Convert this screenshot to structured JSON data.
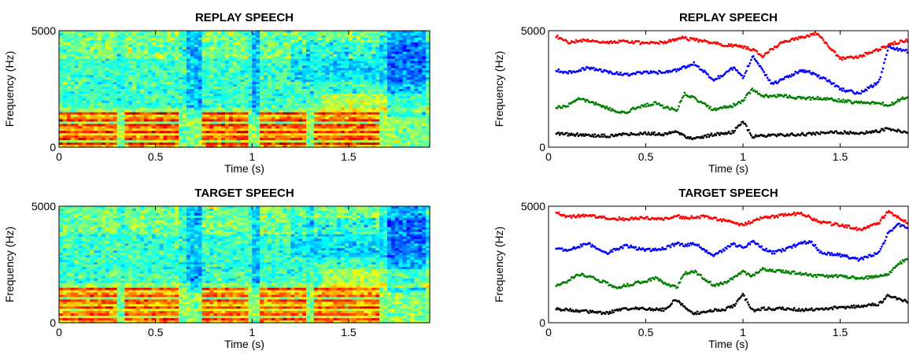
{
  "chart_data": [
    {
      "type": "heatmap",
      "id": "spec-replay",
      "title": "REPLAY SPEECH",
      "xlabel": "Time (s)",
      "ylabel": "Frequency (Hz)",
      "xlim": [
        0,
        1.92
      ],
      "ylim": [
        0,
        5000
      ],
      "xticks": [
        0,
        0.5,
        1,
        1.5
      ],
      "xtick_labels": [
        "0",
        "0.5",
        "1",
        "1.5"
      ],
      "yticks": [
        0,
        5000
      ],
      "ytick_labels": [
        "0",
        "5000"
      ],
      "colormap": "jet",
      "seed": 7,
      "strength": 1.0
    },
    {
      "type": "scatter",
      "id": "formant-replay",
      "title": "REPLAY SPEECH",
      "xlabel": "Time (s)",
      "ylabel": "Frequency (Hz)",
      "xlim": [
        0,
        1.85
      ],
      "ylim": [
        0,
        5000
      ],
      "xticks": [
        0,
        0.5,
        1,
        1.5
      ],
      "xtick_labels": [
        "0",
        "0.5",
        "1",
        "1.5"
      ],
      "yticks": [
        0,
        5000
      ],
      "ytick_labels": [
        "0",
        "5000"
      ],
      "series": [
        {
          "color": "#ff0000",
          "points": [
            [
              0.04,
              4750
            ],
            [
              0.1,
              4500
            ],
            [
              0.2,
              4600
            ],
            [
              0.3,
              4500
            ],
            [
              0.4,
              4550
            ],
            [
              0.5,
              4450
            ],
            [
              0.6,
              4500
            ],
            [
              0.68,
              4700
            ],
            [
              0.8,
              4550
            ],
            [
              0.9,
              4400
            ],
            [
              1.0,
              4300
            ],
            [
              1.05,
              4200
            ],
            [
              1.1,
              3900
            ],
            [
              1.2,
              4500
            ],
            [
              1.3,
              4700
            ],
            [
              1.38,
              4900
            ],
            [
              1.5,
              3800
            ],
            [
              1.6,
              3900
            ],
            [
              1.7,
              4200
            ],
            [
              1.75,
              4400
            ],
            [
              1.85,
              4600
            ]
          ]
        },
        {
          "color": "#0000ff",
          "points": [
            [
              0.04,
              3300
            ],
            [
              0.1,
              3200
            ],
            [
              0.2,
              3400
            ],
            [
              0.3,
              3250
            ],
            [
              0.4,
              3100
            ],
            [
              0.45,
              3200
            ],
            [
              0.55,
              3200
            ],
            [
              0.6,
              3250
            ],
            [
              0.66,
              3300
            ],
            [
              0.75,
              3600
            ],
            [
              0.85,
              2900
            ],
            [
              0.9,
              3100
            ],
            [
              0.95,
              3400
            ],
            [
              1.0,
              3000
            ],
            [
              1.05,
              3900
            ],
            [
              1.1,
              3300
            ],
            [
              1.15,
              2700
            ],
            [
              1.25,
              3100
            ],
            [
              1.3,
              3300
            ],
            [
              1.35,
              3200
            ],
            [
              1.45,
              2800
            ],
            [
              1.5,
              2500
            ],
            [
              1.6,
              2300
            ],
            [
              1.7,
              2800
            ],
            [
              1.75,
              4300
            ],
            [
              1.8,
              4200
            ],
            [
              1.85,
              4100
            ]
          ]
        },
        {
          "color": "#007f00",
          "points": [
            [
              0.04,
              1700
            ],
            [
              0.1,
              1800
            ],
            [
              0.15,
              2100
            ],
            [
              0.2,
              2000
            ],
            [
              0.3,
              1700
            ],
            [
              0.35,
              1500
            ],
            [
              0.4,
              1500
            ],
            [
              0.45,
              1700
            ],
            [
              0.5,
              1800
            ],
            [
              0.55,
              1900
            ],
            [
              0.6,
              1700
            ],
            [
              0.66,
              1600
            ],
            [
              0.7,
              2300
            ],
            [
              0.75,
              2100
            ],
            [
              0.85,
              1600
            ],
            [
              0.9,
              1700
            ],
            [
              0.95,
              1800
            ],
            [
              1.0,
              2000
            ],
            [
              1.05,
              2500
            ],
            [
              1.1,
              2200
            ],
            [
              1.2,
              2200
            ],
            [
              1.3,
              2100
            ],
            [
              1.4,
              2100
            ],
            [
              1.5,
              2000
            ],
            [
              1.6,
              1900
            ],
            [
              1.7,
              1900
            ],
            [
              1.75,
              1800
            ],
            [
              1.8,
              2000
            ],
            [
              1.85,
              2200
            ]
          ]
        },
        {
          "color": "#000000",
          "points": [
            [
              0.04,
              600
            ],
            [
              0.1,
              550
            ],
            [
              0.2,
              520
            ],
            [
              0.3,
              480
            ],
            [
              0.4,
              560
            ],
            [
              0.5,
              600
            ],
            [
              0.6,
              560
            ],
            [
              0.66,
              700
            ],
            [
              0.7,
              450
            ],
            [
              0.75,
              350
            ],
            [
              0.85,
              550
            ],
            [
              0.9,
              560
            ],
            [
              0.95,
              650
            ],
            [
              1.0,
              1100
            ],
            [
              1.05,
              450
            ],
            [
              1.1,
              500
            ],
            [
              1.2,
              520
            ],
            [
              1.3,
              550
            ],
            [
              1.4,
              600
            ],
            [
              1.5,
              650
            ],
            [
              1.6,
              600
            ],
            [
              1.7,
              700
            ],
            [
              1.75,
              800
            ],
            [
              1.8,
              700
            ],
            [
              1.85,
              650
            ]
          ]
        }
      ]
    },
    {
      "type": "heatmap",
      "id": "spec-target",
      "title": "TARGET SPEECH",
      "xlabel": "Time (s)",
      "ylabel": "Frequency (Hz)",
      "xlim": [
        0,
        1.92
      ],
      "ylim": [
        0,
        5000
      ],
      "xticks": [
        0,
        0.5,
        1,
        1.5
      ],
      "xtick_labels": [
        "0",
        "0.5",
        "1",
        "1.5"
      ],
      "yticks": [
        0,
        5000
      ],
      "ytick_labels": [
        "0",
        "5000"
      ],
      "colormap": "jet",
      "seed": 19,
      "strength": 0.9
    },
    {
      "type": "scatter",
      "id": "formant-target",
      "title": "TARGET SPEECH",
      "xlabel": "Time (s)",
      "ylabel": "Frequency (Hz)",
      "xlim": [
        0,
        1.85
      ],
      "ylim": [
        0,
        5000
      ],
      "xticks": [
        0,
        0.5,
        1,
        1.5
      ],
      "xtick_labels": [
        "0",
        "0.5",
        "1",
        "1.5"
      ],
      "yticks": [
        0,
        5000
      ],
      "ytick_labels": [
        "0",
        "5000"
      ],
      "series": [
        {
          "color": "#ff0000",
          "points": [
            [
              0.04,
              4750
            ],
            [
              0.1,
              4550
            ],
            [
              0.2,
              4600
            ],
            [
              0.3,
              4500
            ],
            [
              0.4,
              4450
            ],
            [
              0.5,
              4500
            ],
            [
              0.6,
              4450
            ],
            [
              0.65,
              4600
            ],
            [
              0.7,
              4500
            ],
            [
              0.8,
              4550
            ],
            [
              0.9,
              4400
            ],
            [
              0.95,
              4300
            ],
            [
              1.0,
              4200
            ],
            [
              1.1,
              4500
            ],
            [
              1.2,
              4600
            ],
            [
              1.3,
              4700
            ],
            [
              1.4,
              4300
            ],
            [
              1.5,
              4200
            ],
            [
              1.6,
              4000
            ],
            [
              1.7,
              4300
            ],
            [
              1.75,
              4800
            ],
            [
              1.8,
              4500
            ],
            [
              1.85,
              4300
            ]
          ]
        },
        {
          "color": "#0000ff",
          "points": [
            [
              0.04,
              3200
            ],
            [
              0.1,
              3100
            ],
            [
              0.2,
              3400
            ],
            [
              0.3,
              3000
            ],
            [
              0.4,
              3300
            ],
            [
              0.5,
              3100
            ],
            [
              0.6,
              3200
            ],
            [
              0.66,
              3400
            ],
            [
              0.7,
              3300
            ],
            [
              0.75,
              3400
            ],
            [
              0.85,
              2900
            ],
            [
              0.9,
              3100
            ],
            [
              0.95,
              3400
            ],
            [
              1.0,
              3200
            ],
            [
              1.05,
              3500
            ],
            [
              1.1,
              3200
            ],
            [
              1.15,
              3000
            ],
            [
              1.2,
              3100
            ],
            [
              1.3,
              3400
            ],
            [
              1.35,
              3500
            ],
            [
              1.4,
              3000
            ],
            [
              1.5,
              2900
            ],
            [
              1.6,
              2700
            ],
            [
              1.7,
              3000
            ],
            [
              1.75,
              3900
            ],
            [
              1.8,
              4200
            ],
            [
              1.85,
              4100
            ]
          ]
        },
        {
          "color": "#007f00",
          "points": [
            [
              0.04,
              1600
            ],
            [
              0.1,
              1800
            ],
            [
              0.15,
              2100
            ],
            [
              0.2,
              2000
            ],
            [
              0.3,
              1700
            ],
            [
              0.35,
              1500
            ],
            [
              0.4,
              1600
            ],
            [
              0.5,
              1800
            ],
            [
              0.55,
              1900
            ],
            [
              0.6,
              1700
            ],
            [
              0.66,
              1500
            ],
            [
              0.7,
              2100
            ],
            [
              0.75,
              2200
            ],
            [
              0.85,
              1600
            ],
            [
              0.9,
              1700
            ],
            [
              0.95,
              1900
            ],
            [
              1.0,
              2200
            ],
            [
              1.05,
              2000
            ],
            [
              1.1,
              2300
            ],
            [
              1.2,
              2200
            ],
            [
              1.3,
              2100
            ],
            [
              1.4,
              2000
            ],
            [
              1.5,
              2000
            ],
            [
              1.6,
              1900
            ],
            [
              1.7,
              2000
            ],
            [
              1.75,
              2100
            ],
            [
              1.8,
              2500
            ],
            [
              1.85,
              2800
            ]
          ]
        },
        {
          "color": "#000000",
          "points": [
            [
              0.04,
              600
            ],
            [
              0.1,
              550
            ],
            [
              0.2,
              480
            ],
            [
              0.3,
              420
            ],
            [
              0.4,
              600
            ],
            [
              0.5,
              600
            ],
            [
              0.6,
              560
            ],
            [
              0.65,
              1000
            ],
            [
              0.7,
              700
            ],
            [
              0.75,
              400
            ],
            [
              0.85,
              550
            ],
            [
              0.9,
              560
            ],
            [
              0.95,
              700
            ],
            [
              1.0,
              1200
            ],
            [
              1.05,
              500
            ],
            [
              1.1,
              600
            ],
            [
              1.2,
              600
            ],
            [
              1.3,
              550
            ],
            [
              1.4,
              600
            ],
            [
              1.5,
              650
            ],
            [
              1.6,
              700
            ],
            [
              1.7,
              800
            ],
            [
              1.75,
              1200
            ],
            [
              1.8,
              1000
            ],
            [
              1.85,
              900
            ]
          ]
        }
      ]
    }
  ]
}
